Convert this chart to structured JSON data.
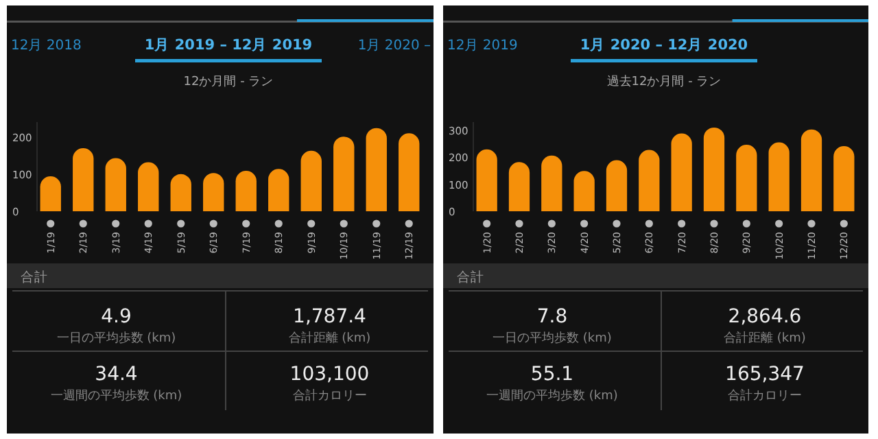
{
  "chart_data": [
    {
      "type": "bar",
      "title": "1月 2019 – 12月 2019",
      "subtitle": "12か月間 - ラン",
      "annotations": [
        "12月 2018",
        "1月 2020 –"
      ],
      "categories": [
        "1/19",
        "2/19",
        "3/19",
        "4/19",
        "5/19",
        "6/19",
        "7/19",
        "8/19",
        "9/19",
        "10/19",
        "11/19",
        "12/19"
      ],
      "values": [
        94,
        170,
        143,
        132,
        100,
        103,
        109,
        114,
        163,
        201,
        224,
        210
      ],
      "color": "#f5900a",
      "ylim": [
        0,
        240
      ],
      "yticks": [
        0,
        100,
        200
      ]
    },
    {
      "type": "other",
      "title": "合計",
      "annotations": [
        "4.9",
        "一日の平均歩数 (km)",
        "1,787.4",
        "合計距離 (km)",
        "34.4",
        "一週間の平均歩数 (km)",
        "103,100",
        "合計カロリー"
      ]
    },
    {
      "type": "bar",
      "title": "1月 2020 – 12月 2020",
      "subtitle": "過去12か月間 - ラン",
      "annotations": [
        "12月 2019"
      ],
      "categories": [
        "1/20",
        "2/20",
        "3/20",
        "4/20",
        "5/20",
        "6/20",
        "7/20",
        "8/20",
        "9/20",
        "10/20",
        "11/20",
        "12/20"
      ],
      "values": [
        229,
        182,
        206,
        149,
        189,
        227,
        288,
        310,
        246,
        255,
        303,
        241
      ],
      "color": "#f5900a",
      "ylim": [
        0,
        330
      ],
      "yticks": [
        0,
        100,
        200,
        300
      ]
    },
    {
      "type": "other",
      "title": "合計",
      "annotations": [
        "7.8",
        "一日の平均歩数 (km)",
        "2,864.6",
        "合計距離 (km)",
        "55.1",
        "一週間の平均歩数 (km)",
        "165,347",
        "合計カロリー"
      ]
    }
  ]
}
